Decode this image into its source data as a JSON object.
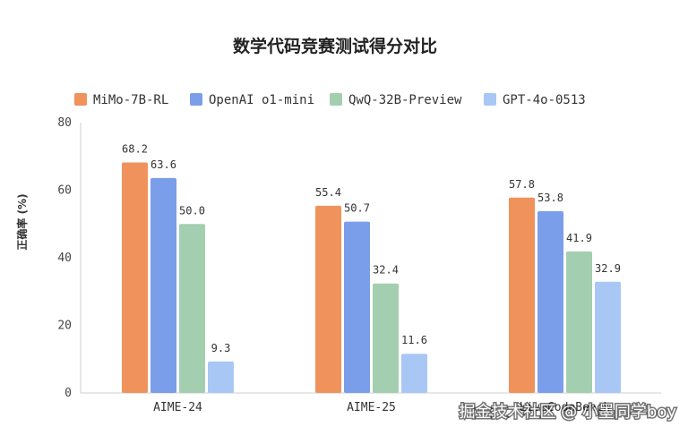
{
  "chart_data": {
    "type": "bar",
    "title": "数学代码竞赛测试得分对比",
    "ylabel": "正确率 (%)",
    "xlabel": "",
    "ylim": [
      0,
      80
    ],
    "yticks": [
      0,
      20,
      40,
      60,
      80
    ],
    "grid": false,
    "legend": "top",
    "categories": [
      "AIME-24",
      "AIME-25",
      "LiveCodeBench"
    ],
    "series": [
      {
        "name": "MiMo-7B-RL",
        "color": "#f0925c",
        "values": [
          68.2,
          55.4,
          57.8
        ]
      },
      {
        "name": "OpenAI o1-mini",
        "color": "#7b9eea",
        "values": [
          63.6,
          50.7,
          53.8
        ]
      },
      {
        "name": "QwQ-32B-Preview",
        "color": "#a3cfb0",
        "values": [
          50.0,
          32.4,
          41.9
        ]
      },
      {
        "name": "GPT-4o-0513",
        "color": "#a9c7f5",
        "values": [
          9.3,
          11.6,
          32.9
        ]
      }
    ]
  },
  "watermark": "掘金技术社区 @ 小墨同学boy"
}
